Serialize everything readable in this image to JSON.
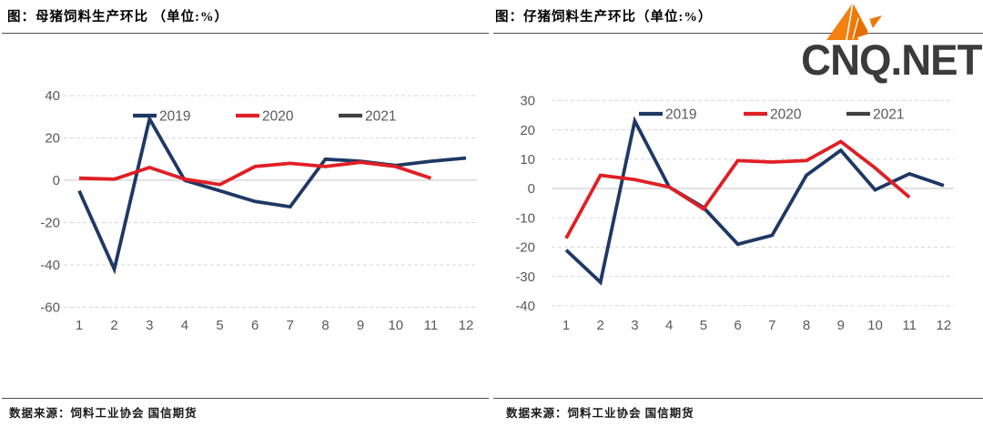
{
  "logo": {
    "text": "CNQ.NET",
    "icon": "origami-fox-icon",
    "accent_color": "#F28110",
    "accent_dark": "#E06F06",
    "text_color": "#3B3B3B"
  },
  "chart_data": [
    {
      "type": "line",
      "title": "图：母猪饲料生产环比 （单位:%）",
      "source": "数据来源：饲料工业协会 国信期货",
      "x": [
        1,
        2,
        3,
        4,
        5,
        6,
        7,
        8,
        9,
        10,
        11,
        12
      ],
      "ylim": [
        -60,
        40
      ],
      "yticks": [
        40,
        20,
        0,
        -20,
        -40,
        -60
      ],
      "grid": "horizontal-dashed",
      "legend_position": "top-inside",
      "series": [
        {
          "name": "2019",
          "color": "#1F3864",
          "values": [
            -5,
            -42,
            29,
            0,
            -5,
            -10,
            -12.5,
            10,
            9,
            7,
            9,
            10.5
          ]
        },
        {
          "name": "2020",
          "color": "#E01F25",
          "values": [
            1,
            0.5,
            6,
            0.5,
            -2,
            6.5,
            8,
            6.5,
            8.5,
            6.5,
            1,
            null
          ]
        },
        {
          "name": "2021",
          "color": "#404040",
          "values": []
        }
      ]
    },
    {
      "type": "line",
      "title": "图：仔猪饲料生产环比（单位:%）",
      "source": "数据来源：饲料工业协会 国信期货",
      "x": [
        1,
        2,
        3,
        4,
        5,
        6,
        7,
        8,
        9,
        10,
        11,
        12
      ],
      "ylim": [
        -40,
        30
      ],
      "yticks": [
        30,
        20,
        10,
        0,
        -10,
        -20,
        -30,
        -40
      ],
      "grid": "horizontal-dashed",
      "legend_position": "top-inside",
      "series": [
        {
          "name": "2019",
          "color": "#1F3864",
          "values": [
            -21,
            -32,
            23,
            0.5,
            -6.5,
            -19,
            -16,
            4.5,
            13,
            -0.5,
            5,
            1
          ]
        },
        {
          "name": "2020",
          "color": "#E01F25",
          "values": [
            -17,
            4.5,
            3,
            0.5,
            -7,
            9.5,
            9,
            9.5,
            16,
            7,
            -3,
            null
          ]
        },
        {
          "name": "2021",
          "color": "#404040",
          "values": []
        }
      ]
    }
  ]
}
